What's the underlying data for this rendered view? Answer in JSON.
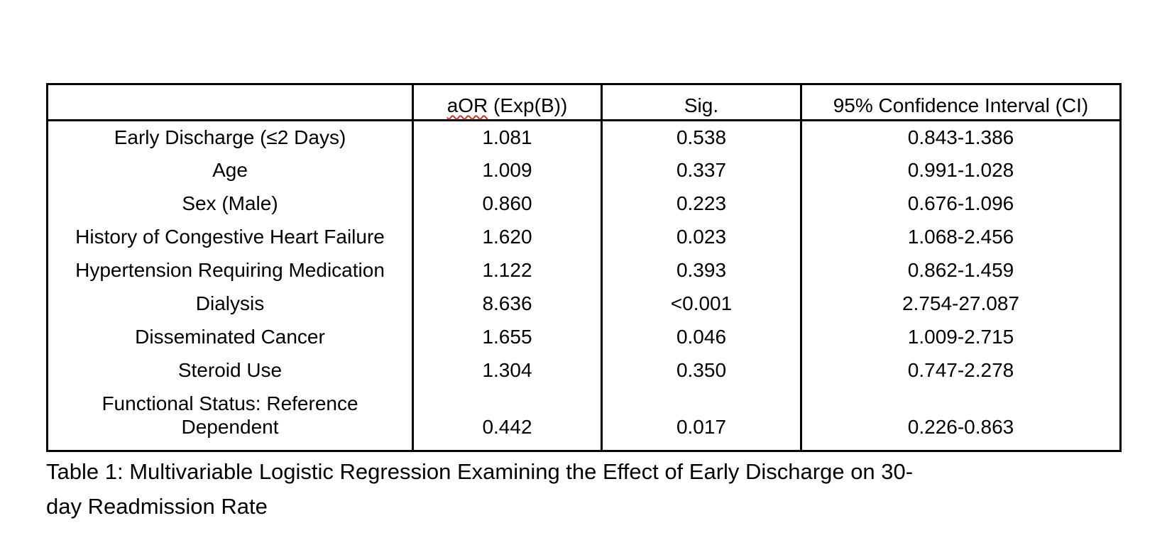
{
  "colors": {
    "text": "#000000",
    "border": "#000000",
    "spellcheck_underline": "#d0362d",
    "background": "#ffffff"
  },
  "table": {
    "header": {
      "col0": "",
      "col1_word": "aOR",
      "col1_rest": " (Exp(B))",
      "col2": "Sig.",
      "col3": "95% Confidence Interval (CI)"
    },
    "rows": [
      {
        "label": "Early Discharge (≤2 Days)",
        "aor": "1.081",
        "sig": "0.538",
        "sig_bold": false,
        "ci": "0.843-1.386"
      },
      {
        "label": "Age",
        "aor": "1.009",
        "sig": "0.337",
        "sig_bold": false,
        "ci": "0.991-1.028"
      },
      {
        "label": "Sex (Male)",
        "aor": "0.860",
        "sig": "0.223",
        "sig_bold": false,
        "ci": "0.676-1.096"
      },
      {
        "label": "History of Congestive Heart Failure",
        "aor": "1.620",
        "sig": "0.023",
        "sig_bold": true,
        "ci": "1.068-2.456"
      },
      {
        "label": "Hypertension Requiring Medication",
        "aor": "1.122",
        "sig": "0.393",
        "sig_bold": false,
        "ci": "0.862-1.459"
      },
      {
        "label": "Dialysis",
        "aor": "8.636",
        "sig": "<0.001",
        "sig_bold": true,
        "ci": "2.754-27.087"
      },
      {
        "label": "Disseminated Cancer",
        "aor": "1.655",
        "sig": "0.046",
        "sig_bold": true,
        "ci": "1.009-2.715"
      },
      {
        "label": "Steroid Use",
        "aor": "1.304",
        "sig": "0.350",
        "sig_bold": false,
        "ci": "0.747-2.278"
      },
      {
        "label_lines": [
          "Functional Status: Reference",
          "Dependent"
        ],
        "aor": "0.442",
        "sig": "0.017",
        "sig_bold": true,
        "ci": "0.226-0.863"
      }
    ]
  },
  "caption": {
    "line1": "Table 1: Multivariable Logistic Regression Examining the Effect of Early Discharge on 30-",
    "line2": "day Readmission Rate"
  }
}
